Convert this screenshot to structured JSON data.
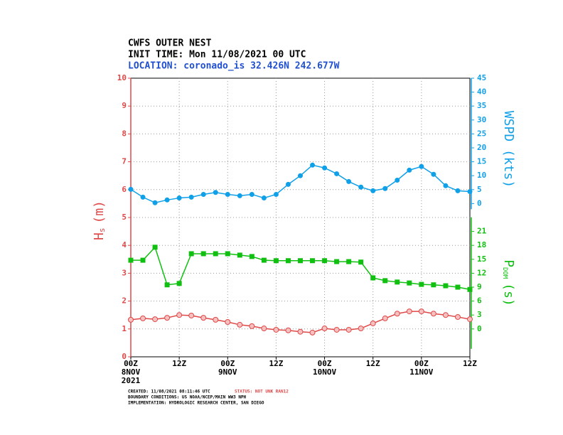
{
  "chart_data": {
    "type": "line",
    "title": "CWFS OUTER NEST",
    "subtitle": "INIT TIME: Mon 11/08/2021 00 UTC",
    "location": "LOCATION: coronado_is 32.426N 242.677W",
    "ylabel_main": "H",
    "ylabel_sub": "s",
    "ylabel_unit": "(m)",
    "y2label": "WSPD (kts)",
    "y3label_main": "P",
    "y3label_sub": "DOM",
    "y3label_unit": "(s)",
    "categories": [
      "00Z",
      null,
      null,
      null,
      "12Z",
      null,
      null,
      null,
      "00Z",
      null,
      null,
      null,
      "12Z",
      null,
      null,
      null,
      "00Z",
      null,
      null,
      null,
      "12Z",
      null,
      null,
      null,
      "00Z",
      null,
      null,
      null,
      "12Z"
    ],
    "date_labels": [
      "8NOV",
      null,
      null,
      null,
      null,
      null,
      null,
      null,
      "9NOV",
      null,
      null,
      null,
      null,
      null,
      null,
      null,
      "10NOV",
      null,
      null,
      null,
      null,
      null,
      null,
      null,
      "11NOV",
      null,
      null,
      null,
      null
    ],
    "year_label": "2021",
    "ylim": [
      0,
      10
    ],
    "yticks": [
      0,
      1,
      2,
      3,
      4,
      5,
      6,
      7,
      8,
      9,
      10
    ],
    "y2lim": [
      -55,
      45
    ],
    "y2ticks": [
      0,
      5,
      10,
      15,
      20,
      25,
      30,
      35,
      40,
      45
    ],
    "y3lim": [
      -6,
      54
    ],
    "y3ticks": [
      0,
      3,
      6,
      9,
      12,
      15,
      18,
      21
    ],
    "grid": true,
    "series": [
      {
        "name": "Hs",
        "color": "#e04848",
        "marker": "circle",
        "axis": "y",
        "values": [
          1.33,
          1.38,
          1.35,
          1.4,
          1.5,
          1.48,
          1.4,
          1.33,
          1.25,
          1.15,
          1.1,
          1.02,
          0.97,
          0.95,
          0.9,
          0.87,
          1.02,
          0.97,
          0.97,
          1.02,
          1.2,
          1.38,
          1.55,
          1.63,
          1.63,
          1.55,
          1.5,
          1.43,
          1.35
        ]
      },
      {
        "name": "WSPD",
        "color": "#10a0e8",
        "marker": "dot",
        "axis": "y2",
        "values": [
          5.1,
          2.3,
          0.3,
          1.3,
          2,
          2.3,
          3.3,
          4,
          3.3,
          2.8,
          3.3,
          2,
          3.3,
          6.9,
          10,
          13.8,
          12.8,
          10.7,
          7.9,
          5.9,
          4.6,
          5.4,
          8.4,
          12,
          13.3,
          10.5,
          6.4,
          4.6,
          4.3
        ]
      },
      {
        "name": "PDOM",
        "color": "#10c010",
        "marker": "square",
        "axis": "y3",
        "values": [
          14.8,
          14.8,
          17.6,
          9.5,
          9.8,
          16.2,
          16.2,
          16.2,
          16.2,
          15.9,
          15.6,
          14.8,
          14.7,
          14.7,
          14.7,
          14.7,
          14.7,
          14.5,
          14.5,
          14.4,
          11,
          10.4,
          10.1,
          9.9,
          9.6,
          9.5,
          9.3,
          9,
          8.5
        ]
      }
    ],
    "footer": {
      "created": "CREATED: 11/08/2021 08:11:46 UTC",
      "status": "STATUS: NOT UNK RAN12",
      "boundary": "BOUNDARY CONDITIONS: US NOAA/NCEP/MAIN WW3 NPH",
      "implementation": "IMPLEMENTATION: HYDROLOGIC RESEARCH CENTER, SAN DIEGO"
    }
  }
}
